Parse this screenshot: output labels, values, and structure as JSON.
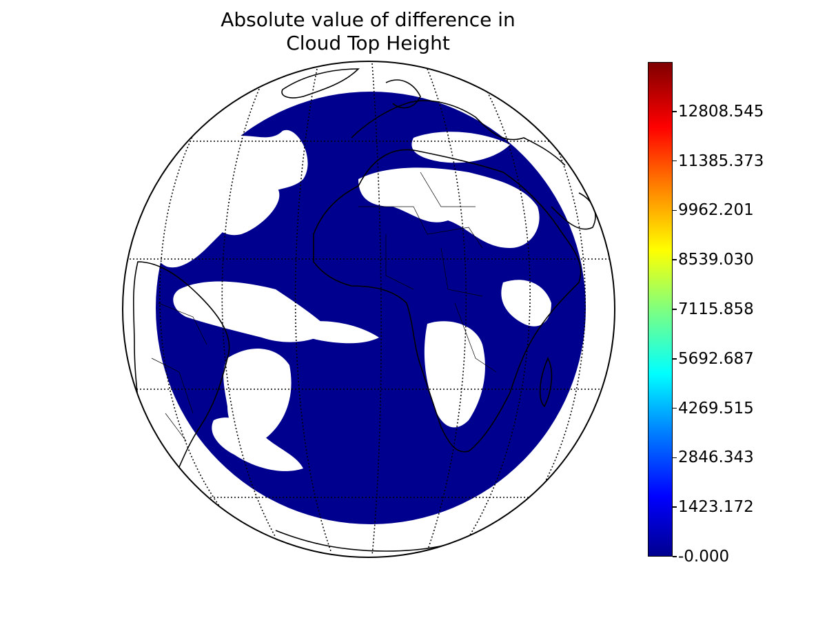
{
  "title": {
    "line1": "Absolute value of difference in",
    "line2": "Cloud Top Height"
  },
  "colorbar": {
    "colormap": "jet",
    "min": -0.0,
    "max": 14231.716,
    "ticks": [
      {
        "value": -0.0,
        "label": "-0.000"
      },
      {
        "value": 1423.172,
        "label": "1423.172"
      },
      {
        "value": 2846.343,
        "label": "2846.343"
      },
      {
        "value": 4269.515,
        "label": "4269.515"
      },
      {
        "value": 5692.687,
        "label": "5692.687"
      },
      {
        "value": 7115.858,
        "label": "7115.858"
      },
      {
        "value": 8539.03,
        "label": "8539.030"
      },
      {
        "value": 9962.201,
        "label": "9962.201"
      },
      {
        "value": 11385.373,
        "label": "11385.373"
      },
      {
        "value": 12808.545,
        "label": "12808.545"
      }
    ]
  },
  "map": {
    "projection": "orthographic",
    "data_color": "#00008f",
    "coastline_color": "#000000",
    "graticule": "dotted"
  }
}
